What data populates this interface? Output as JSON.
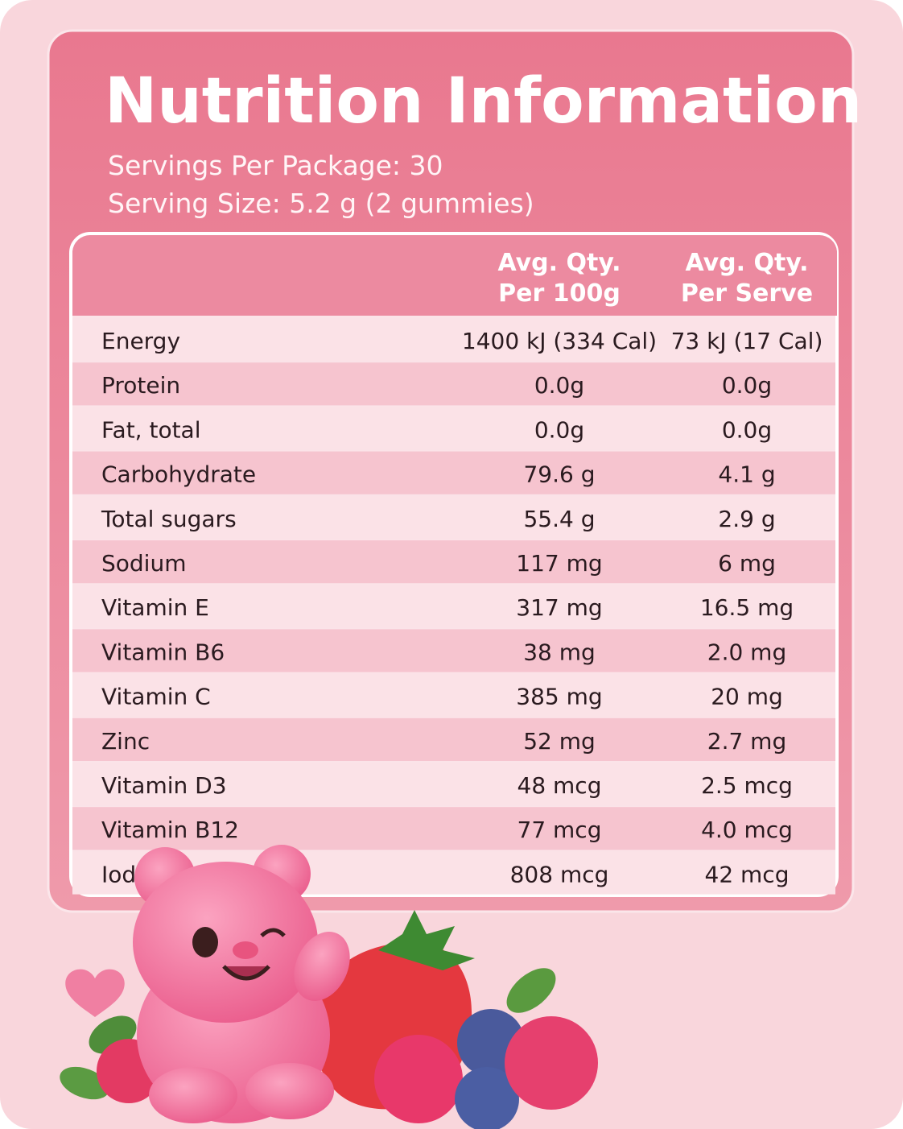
{
  "header": {
    "title": "Nutrition Information",
    "servings_per_package": "Servings Per Package: 30",
    "serving_size": "Serving Size: 5.2 g (2 gummies)"
  },
  "table": {
    "columns": [
      [
        "Avg. Qty.",
        "Per 100g"
      ],
      [
        "Avg. Qty.",
        "Per Serve"
      ]
    ],
    "rows": [
      [
        "Energy",
        "1400 kJ (334 Cal)",
        "73 kJ (17 Cal)"
      ],
      [
        "Protein",
        "0.0g",
        "0.0g"
      ],
      [
        "Fat, total",
        "0.0g",
        "0.0g"
      ],
      [
        "Carbohydrate",
        "79.6 g",
        "4.1 g"
      ],
      [
        "Total sugars",
        "55.4 g",
        "2.9 g"
      ],
      [
        "Sodium",
        "117 mg",
        "6 mg"
      ],
      [
        "Vitamin E",
        "317 mg",
        "16.5 mg"
      ],
      [
        "Vitamin B6",
        "38 mg",
        "2.0 mg"
      ],
      [
        "Vitamin C",
        "385 mg",
        "20 mg"
      ],
      [
        "Zinc",
        "52 mg",
        "2.7 mg"
      ],
      [
        "Vitamin D3",
        "48 mcg",
        "2.5 mcg"
      ],
      [
        "Vitamin B12",
        "77 mcg",
        "4.0 mcg"
      ],
      [
        "Iodine",
        "808 mcg",
        "42 mcg"
      ]
    ]
  }
}
